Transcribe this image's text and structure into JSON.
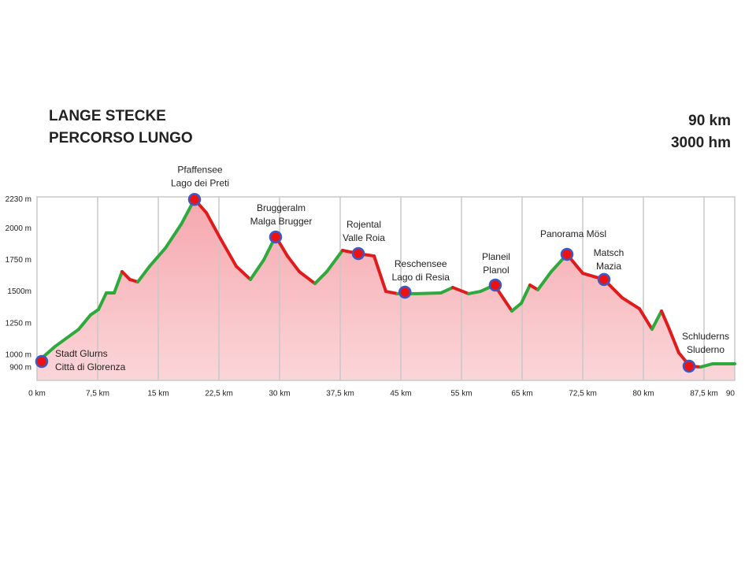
{
  "chart_data": {
    "type": "elevation-profile",
    "title": "LANGE STECKE",
    "subtitle": "PERCORSO LUNGO",
    "annotations": [
      "90 km",
      "3000 hm"
    ],
    "x": [
      0,
      2.24,
      5.16,
      6.62,
      7.6,
      8.57,
      9.55,
      10.52,
      11.49,
      12.47,
      13.93,
      15.88,
      17.82,
      19.48,
      20.94,
      22.69,
      24.64,
      26.4,
      28.05,
      29.51,
      30.97,
      32.44,
      34.38,
      35.84,
      37.79,
      39.74,
      41.69,
      43.15,
      44.61,
      47.73,
      51.62,
      53.57,
      56.17,
      58.12,
      60.45,
      62.01,
      63.31,
      64.87,
      65.97,
      66.95,
      68.6,
      70.55,
      72.5,
      75.13,
      77.37,
      79.51,
      81.07,
      82.24,
      83.21,
      84.38,
      85.75,
      87.11,
      88.21,
      90
    ],
    "values": [
      943,
      1068,
      1204,
      1317,
      1360,
      1491,
      1491,
      1659,
      1597,
      1578,
      1702,
      1845,
      2032,
      2231,
      2125,
      1920,
      1702,
      1597,
      1752,
      1939,
      1783,
      1659,
      1565,
      1659,
      1827,
      1802,
      1783,
      1503,
      1485,
      1485,
      1491,
      1534,
      1485,
      1503,
      1553,
      1441,
      1348,
      1410,
      1553,
      1516,
      1659,
      1796,
      1646,
      1597,
      1453,
      1366,
      1204,
      1348,
      1204,
      1018,
      912,
      906,
      931,
      931
    ],
    "up_color": "#2eaa3c",
    "down_color": "#e01b1b",
    "fill_color": "#f5a3aa",
    "marker_color": "#ee1111",
    "marker_edge": "#3a5bc7",
    "waypoints": [
      {
        "label": [
          "Stadt Glurns",
          "Città di Glorenza"
        ],
        "km": 0.58,
        "elevation": 949
      },
      {
        "label": [
          "Pfaffensee",
          "Lago dei Preti"
        ],
        "km": 19.48,
        "elevation": 2230
      },
      {
        "label": [
          "Bruggeralm",
          "Malga Brugger"
        ],
        "km": 29.51,
        "elevation": 1933
      },
      {
        "label": [
          "Rojental",
          "Valle Roia"
        ],
        "km": 39.74,
        "elevation": 1802
      },
      {
        "label": [
          "Reschensee",
          "Lago di Resia"
        ],
        "km": 45.68,
        "elevation": 1497
      },
      {
        "label": [
          "Planeil",
          "Planol"
        ],
        "km": 60.58,
        "elevation": 1553
      },
      {
        "label": [
          "Panorama Mösl"
        ],
        "km": 70.55,
        "elevation": 1796
      },
      {
        "label": [
          "Matsch",
          "Mazia"
        ],
        "km": 75.13,
        "elevation": 1597
      },
      {
        "label": [
          "Schluderns",
          "Sluderno"
        ],
        "km": 85.65,
        "elevation": 912
      }
    ],
    "xlim": [
      0,
      90
    ],
    "xticks": [
      {
        "value": 0,
        "label": "0 km"
      },
      {
        "value": 7.5,
        "label": "7,5 km"
      },
      {
        "value": 15,
        "label": "15 km"
      },
      {
        "value": 22.5,
        "label": "22,5 km"
      },
      {
        "value": 30,
        "label": "30 km"
      },
      {
        "value": 37.5,
        "label": "37,5 km"
      },
      {
        "value": 45,
        "label": "45 km"
      },
      {
        "value": 55,
        "label": "55 km"
      },
      {
        "value": 65,
        "label": "65 km"
      },
      {
        "value": 72.5,
        "label": "72,5 km"
      },
      {
        "value": 80,
        "label": "80 km"
      },
      {
        "value": 87.5,
        "label": "87,5 km"
      },
      90
    ],
    "ylim": [
      800,
      2250
    ],
    "yticks": [
      {
        "value": 900,
        "label": "900 m"
      },
      {
        "value": 1000,
        "label": "1000 m"
      },
      {
        "value": 1250,
        "label": "1250 m"
      },
      {
        "value": 1500,
        "label": "1500m"
      },
      {
        "value": 1750,
        "label": "1750 m"
      },
      {
        "value": 2000,
        "label": "2000 m"
      },
      {
        "value": 2230,
        "label": "2230 m"
      }
    ],
    "grid": true
  }
}
